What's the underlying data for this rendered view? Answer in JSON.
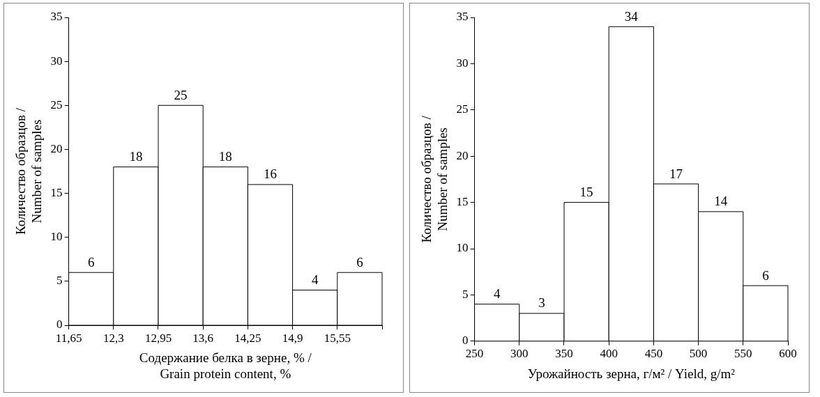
{
  "chart_data": [
    {
      "type": "histogram",
      "xlabel": "Содержание белка в зерне, % /\nGrain protein content, %",
      "ylabel": "Количество образцов /\nNumber of samples",
      "bins": [
        11.65,
        12.3,
        12.95,
        13.6,
        14.25,
        14.9,
        15.55,
        16.2
      ],
      "values": [
        6,
        18,
        25,
        18,
        16,
        4,
        6
      ],
      "color": "#ffffff",
      "xlim": [
        11.65,
        16.2
      ],
      "xticks": [
        {
          "value": 11.65,
          "label": "11,65"
        },
        {
          "value": 12.3,
          "label": "12,3"
        },
        {
          "value": 12.95,
          "label": "12,95"
        },
        {
          "value": 13.6,
          "label": "13,6"
        },
        {
          "value": 14.25,
          "label": "14,25"
        },
        {
          "value": 14.9,
          "label": "14,9"
        },
        {
          "value": 15.55,
          "label": "15,55"
        },
        {
          "value": 16.2,
          "label": null
        }
      ],
      "ylim": [
        0,
        35
      ],
      "yticks": [
        0,
        5,
        10,
        15,
        20,
        25,
        30,
        35
      ],
      "grid": false,
      "legend": false,
      "data_labels": true
    },
    {
      "type": "histogram",
      "xlabel": "Урожайность зерна, г/м² / Yield, g/m²",
      "ylabel": "Количество образцов /\nNumber of samples",
      "bins": [
        250,
        300,
        350,
        400,
        450,
        500,
        550,
        600
      ],
      "values": [
        4,
        3,
        15,
        34,
        17,
        14,
        6
      ],
      "color": "#ffffff",
      "xlim": [
        250,
        600
      ],
      "xticks": [
        250,
        300,
        350,
        400,
        450,
        500,
        550,
        600
      ],
      "ylim": [
        0,
        35
      ],
      "yticks": [
        0,
        5,
        10,
        15,
        20,
        25,
        30,
        35
      ],
      "grid": false,
      "legend": false,
      "data_labels": true
    }
  ]
}
